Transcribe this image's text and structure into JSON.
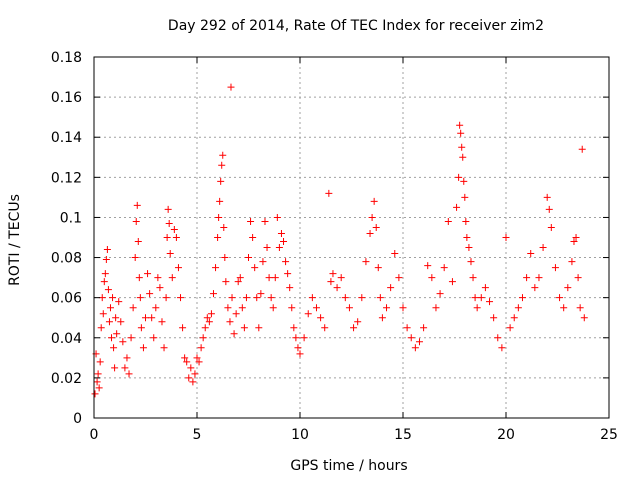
{
  "chart_data": {
    "type": "scatter",
    "title": "Day 292 of 2014, Rate Of TEC Index for receiver zim2",
    "xlabel": "GPS time / hours",
    "ylabel": "ROTI / TECUs",
    "xlim": [
      0,
      25
    ],
    "ylim": [
      0,
      0.18
    ],
    "xticks": [
      0,
      5,
      10,
      15,
      20,
      25
    ],
    "yticks": [
      0,
      0.02,
      0.04,
      0.06,
      0.08,
      0.1,
      0.12,
      0.14,
      0.16,
      0.18
    ],
    "xtick_labels": [
      "0",
      "5",
      "10",
      "15",
      "20",
      "25"
    ],
    "ytick_labels": [
      "0",
      "0.02",
      "0.04",
      "0.06",
      "0.08",
      "0.1",
      "0.12",
      "0.14",
      "0.16",
      "0.18"
    ],
    "grid": true,
    "marker": "plus",
    "color": "#ff0000",
    "series": [
      {
        "name": "ROTI",
        "points": [
          [
            0.05,
            0.012
          ],
          [
            0.1,
            0.032
          ],
          [
            0.15,
            0.018
          ],
          [
            0.2,
            0.022
          ],
          [
            0.25,
            0.015
          ],
          [
            0.3,
            0.028
          ],
          [
            0.35,
            0.045
          ],
          [
            0.4,
            0.06
          ],
          [
            0.45,
            0.052
          ],
          [
            0.5,
            0.068
          ],
          [
            0.55,
            0.072
          ],
          [
            0.6,
            0.079
          ],
          [
            0.65,
            0.084
          ],
          [
            0.7,
            0.064
          ],
          [
            0.75,
            0.048
          ],
          [
            0.8,
            0.055
          ],
          [
            0.85,
            0.04
          ],
          [
            0.9,
            0.06
          ],
          [
            0.95,
            0.035
          ],
          [
            1.0,
            0.025
          ],
          [
            1.05,
            0.05
          ],
          [
            1.1,
            0.042
          ],
          [
            1.2,
            0.058
          ],
          [
            1.3,
            0.048
          ],
          [
            1.4,
            0.038
          ],
          [
            1.5,
            0.025
          ],
          [
            1.6,
            0.03
          ],
          [
            1.7,
            0.022
          ],
          [
            1.8,
            0.04
          ],
          [
            1.9,
            0.055
          ],
          [
            2.0,
            0.08
          ],
          [
            2.05,
            0.098
          ],
          [
            2.1,
            0.106
          ],
          [
            2.15,
            0.088
          ],
          [
            2.2,
            0.07
          ],
          [
            2.25,
            0.06
          ],
          [
            2.3,
            0.045
          ],
          [
            2.4,
            0.035
          ],
          [
            2.5,
            0.05
          ],
          [
            2.6,
            0.072
          ],
          [
            2.7,
            0.062
          ],
          [
            2.8,
            0.05
          ],
          [
            2.9,
            0.04
          ],
          [
            3.0,
            0.055
          ],
          [
            3.1,
            0.07
          ],
          [
            3.2,
            0.065
          ],
          [
            3.3,
            0.048
          ],
          [
            3.4,
            0.035
          ],
          [
            3.5,
            0.06
          ],
          [
            3.55,
            0.09
          ],
          [
            3.6,
            0.104
          ],
          [
            3.65,
            0.097
          ],
          [
            3.7,
            0.082
          ],
          [
            3.8,
            0.07
          ],
          [
            3.9,
            0.094
          ],
          [
            4.0,
            0.09
          ],
          [
            4.1,
            0.075
          ],
          [
            4.2,
            0.06
          ],
          [
            4.3,
            0.045
          ],
          [
            4.4,
            0.03
          ],
          [
            4.5,
            0.028
          ],
          [
            4.6,
            0.02
          ],
          [
            4.7,
            0.025
          ],
          [
            4.8,
            0.018
          ],
          [
            4.9,
            0.022
          ],
          [
            5.0,
            0.03
          ],
          [
            5.1,
            0.028
          ],
          [
            5.2,
            0.035
          ],
          [
            5.3,
            0.04
          ],
          [
            5.4,
            0.045
          ],
          [
            5.5,
            0.05
          ],
          [
            5.6,
            0.048
          ],
          [
            5.7,
            0.052
          ],
          [
            5.8,
            0.062
          ],
          [
            5.9,
            0.075
          ],
          [
            6.0,
            0.09
          ],
          [
            6.05,
            0.1
          ],
          [
            6.1,
            0.108
          ],
          [
            6.15,
            0.118
          ],
          [
            6.2,
            0.126
          ],
          [
            6.25,
            0.131
          ],
          [
            6.3,
            0.095
          ],
          [
            6.35,
            0.08
          ],
          [
            6.4,
            0.068
          ],
          [
            6.5,
            0.055
          ],
          [
            6.6,
            0.048
          ],
          [
            6.65,
            0.165
          ],
          [
            6.7,
            0.06
          ],
          [
            6.8,
            0.042
          ],
          [
            6.9,
            0.052
          ],
          [
            7.0,
            0.068
          ],
          [
            7.1,
            0.07
          ],
          [
            7.2,
            0.055
          ],
          [
            7.3,
            0.045
          ],
          [
            7.4,
            0.06
          ],
          [
            7.5,
            0.08
          ],
          [
            7.6,
            0.098
          ],
          [
            7.7,
            0.09
          ],
          [
            7.8,
            0.075
          ],
          [
            7.9,
            0.06
          ],
          [
            8.0,
            0.045
          ],
          [
            8.1,
            0.062
          ],
          [
            8.2,
            0.078
          ],
          [
            8.3,
            0.098
          ],
          [
            8.4,
            0.085
          ],
          [
            8.5,
            0.07
          ],
          [
            8.6,
            0.06
          ],
          [
            8.7,
            0.055
          ],
          [
            8.8,
            0.07
          ],
          [
            8.9,
            0.1
          ],
          [
            9.0,
            0.085
          ],
          [
            9.1,
            0.092
          ],
          [
            9.2,
            0.088
          ],
          [
            9.3,
            0.078
          ],
          [
            9.4,
            0.072
          ],
          [
            9.5,
            0.065
          ],
          [
            9.6,
            0.055
          ],
          [
            9.7,
            0.045
          ],
          [
            9.8,
            0.04
          ],
          [
            9.9,
            0.035
          ],
          [
            10.0,
            0.032
          ],
          [
            10.2,
            0.04
          ],
          [
            10.4,
            0.052
          ],
          [
            10.6,
            0.06
          ],
          [
            10.8,
            0.055
          ],
          [
            11.0,
            0.05
          ],
          [
            11.2,
            0.045
          ],
          [
            11.4,
            0.112
          ],
          [
            11.5,
            0.068
          ],
          [
            11.6,
            0.072
          ],
          [
            11.8,
            0.065
          ],
          [
            12.0,
            0.07
          ],
          [
            12.2,
            0.06
          ],
          [
            12.4,
            0.055
          ],
          [
            12.6,
            0.045
          ],
          [
            12.8,
            0.048
          ],
          [
            13.0,
            0.06
          ],
          [
            13.2,
            0.078
          ],
          [
            13.4,
            0.092
          ],
          [
            13.5,
            0.1
          ],
          [
            13.6,
            0.108
          ],
          [
            13.7,
            0.095
          ],
          [
            13.8,
            0.075
          ],
          [
            13.9,
            0.06
          ],
          [
            14.0,
            0.05
          ],
          [
            14.2,
            0.055
          ],
          [
            14.4,
            0.065
          ],
          [
            14.6,
            0.082
          ],
          [
            14.8,
            0.07
          ],
          [
            15.0,
            0.055
          ],
          [
            15.2,
            0.045
          ],
          [
            15.4,
            0.04
          ],
          [
            15.6,
            0.035
          ],
          [
            15.8,
            0.038
          ],
          [
            16.0,
            0.045
          ],
          [
            16.2,
            0.076
          ],
          [
            16.4,
            0.07
          ],
          [
            16.6,
            0.055
          ],
          [
            16.8,
            0.062
          ],
          [
            17.0,
            0.075
          ],
          [
            17.2,
            0.098
          ],
          [
            17.4,
            0.068
          ],
          [
            17.6,
            0.105
          ],
          [
            17.7,
            0.12
          ],
          [
            17.75,
            0.146
          ],
          [
            17.8,
            0.142
          ],
          [
            17.85,
            0.135
          ],
          [
            17.9,
            0.13
          ],
          [
            17.95,
            0.118
          ],
          [
            18.0,
            0.11
          ],
          [
            18.05,
            0.098
          ],
          [
            18.1,
            0.09
          ],
          [
            18.2,
            0.085
          ],
          [
            18.3,
            0.078
          ],
          [
            18.4,
            0.07
          ],
          [
            18.5,
            0.06
          ],
          [
            18.6,
            0.055
          ],
          [
            18.8,
            0.06
          ],
          [
            19.0,
            0.065
          ],
          [
            19.2,
            0.058
          ],
          [
            19.4,
            0.05
          ],
          [
            19.6,
            0.04
          ],
          [
            19.8,
            0.035
          ],
          [
            20.0,
            0.09
          ],
          [
            20.2,
            0.045
          ],
          [
            20.4,
            0.05
          ],
          [
            20.6,
            0.055
          ],
          [
            20.8,
            0.06
          ],
          [
            21.0,
            0.07
          ],
          [
            21.2,
            0.082
          ],
          [
            21.4,
            0.065
          ],
          [
            21.6,
            0.07
          ],
          [
            21.8,
            0.085
          ],
          [
            22.0,
            0.11
          ],
          [
            22.1,
            0.104
          ],
          [
            22.2,
            0.095
          ],
          [
            22.4,
            0.075
          ],
          [
            22.6,
            0.06
          ],
          [
            22.8,
            0.055
          ],
          [
            23.0,
            0.065
          ],
          [
            23.2,
            0.078
          ],
          [
            23.3,
            0.088
          ],
          [
            23.4,
            0.09
          ],
          [
            23.5,
            0.07
          ],
          [
            23.6,
            0.055
          ],
          [
            23.7,
            0.134
          ],
          [
            23.8,
            0.05
          ]
        ]
      }
    ]
  }
}
